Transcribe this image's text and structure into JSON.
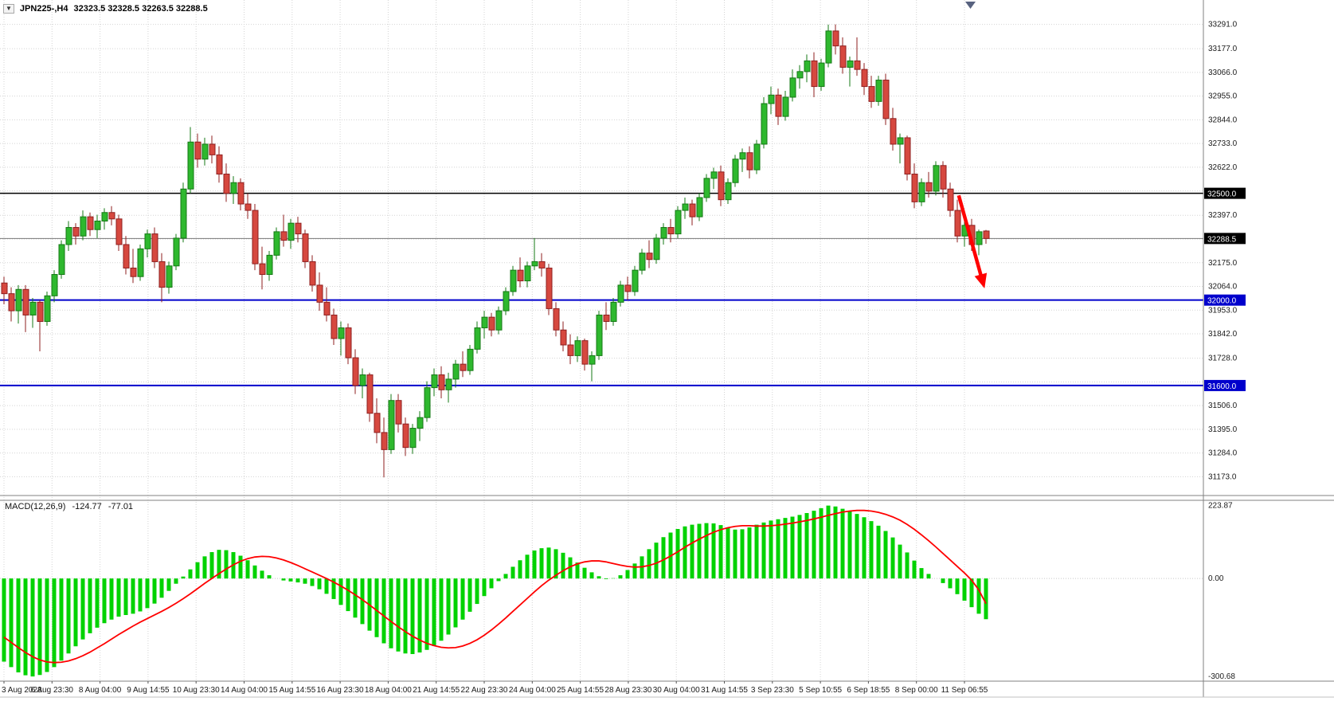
{
  "window": {
    "dropdown_icon": "▼",
    "symbol": "JPN225-,H4",
    "ohlc": "32323.5 32328.5 32263.5 32288.5"
  },
  "macd_panel": {
    "name_label": "MACD(12,26,9)",
    "main_value": "-124.77",
    "signal_value": "-77.01"
  },
  "colors": {
    "bull_fill": "#2eb82e",
    "bull_border": "#157815",
    "bear_fill": "#d6483f",
    "bear_border": "#8f1f1f",
    "grid": "#d4d4d4",
    "level_blue": "#0000cc",
    "level_black": "#000000",
    "current_price_line": "#777777",
    "macd_bar": "#00d200",
    "macd_signal": "#ff0000",
    "arrow": "#ff0000",
    "axis_text": "#1a1a1a",
    "box_text": "#ffffff",
    "pane_border": "#808080",
    "shift_marker": "#58627f"
  },
  "chart_data": {
    "type": "candlestick",
    "title": "JPN225-,H4",
    "symbol": "JPN225-",
    "timeframe": "H4",
    "ohlc_current": {
      "open": 32323.5,
      "high": 32328.5,
      "low": 32263.5,
      "close": 32288.5
    },
    "price_range": [
      31085,
      33405
    ],
    "price_ticks": [
      {
        "text": "33291.0",
        "value": 33291
      },
      {
        "text": "33177.0",
        "value": 33177
      },
      {
        "text": "33066.0",
        "value": 33066
      },
      {
        "text": "32955.0",
        "value": 32955
      },
      {
        "text": "32844.0",
        "value": 32844
      },
      {
        "text": "32733.0",
        "value": 32733
      },
      {
        "text": "32622.0",
        "value": 32622
      },
      {
        "text": "32397.0",
        "value": 32397
      },
      {
        "text": "32175.0",
        "value": 32175
      },
      {
        "text": "32064.0",
        "value": 32064
      },
      {
        "text": "31953.0",
        "value": 31953
      },
      {
        "text": "31842.0",
        "value": 31842
      },
      {
        "text": "31728.0",
        "value": 31728
      },
      {
        "text": "31506.0",
        "value": 31506
      },
      {
        "text": "31395.0",
        "value": 31395
      },
      {
        "text": "31284.0",
        "value": 31284
      },
      {
        "text": "31173.0",
        "value": 31173
      }
    ],
    "hidden_grid": [
      32511,
      32286,
      31617
    ],
    "levels": [
      {
        "label": "32500.0",
        "price": 32500,
        "style": "black"
      },
      {
        "label": "32288.5",
        "price": 32288.5,
        "style": "current"
      },
      {
        "label": "32000.0",
        "price": 32000,
        "style": "blue"
      },
      {
        "label": "31600.0",
        "price": 31600,
        "style": "blue"
      }
    ],
    "x_labels": [
      "3 Aug 2023",
      "6 Aug 23:30",
      "8 Aug 04:00",
      "9 Aug 14:55",
      "10 Aug 23:30",
      "14 Aug 04:00",
      "15 Aug 14:55",
      "16 Aug 23:30",
      "18 Aug 04:00",
      "21 Aug 14:55",
      "22 Aug 23:30",
      "24 Aug 04:00",
      "25 Aug 14:55",
      "28 Aug 23:30",
      "30 Aug 04:00",
      "31 Aug 14:55",
      "3 Sep 23:30",
      "5 Sep 10:55",
      "6 Sep 18:55",
      "8 Sep 00:00",
      "11 Sep 06:55"
    ],
    "x_label_span": [
      0,
      134
    ],
    "candles": [
      [
        32080,
        32110,
        31980,
        32030
      ],
      [
        32030,
        32060,
        31900,
        31950
      ],
      [
        31950,
        32070,
        31890,
        32050
      ],
      [
        32050,
        32070,
        31850,
        31930
      ],
      [
        31930,
        32010,
        31870,
        31990
      ],
      [
        31990,
        32000,
        31760,
        31900
      ],
      [
        31900,
        32040,
        31880,
        32020
      ],
      [
        32020,
        32140,
        31990,
        32120
      ],
      [
        32120,
        32280,
        32100,
        32260
      ],
      [
        32260,
        32370,
        32230,
        32340
      ],
      [
        32340,
        32360,
        32260,
        32300
      ],
      [
        32300,
        32420,
        32280,
        32390
      ],
      [
        32390,
        32410,
        32300,
        32330
      ],
      [
        32330,
        32400,
        32290,
        32370
      ],
      [
        32370,
        32430,
        32330,
        32410
      ],
      [
        32410,
        32440,
        32350,
        32380
      ],
      [
        32380,
        32400,
        32230,
        32260
      ],
      [
        32260,
        32300,
        32120,
        32150
      ],
      [
        32150,
        32240,
        32080,
        32110
      ],
      [
        32110,
        32260,
        32090,
        32240
      ],
      [
        32240,
        32330,
        32200,
        32310
      ],
      [
        32310,
        32340,
        32150,
        32180
      ],
      [
        32180,
        32220,
        31990,
        32060
      ],
      [
        32060,
        32180,
        32030,
        32160
      ],
      [
        32160,
        32310,
        32140,
        32290
      ],
      [
        32290,
        32550,
        32270,
        32520
      ],
      [
        32520,
        32810,
        32500,
        32740
      ],
      [
        32740,
        32780,
        32620,
        32660
      ],
      [
        32660,
        32760,
        32630,
        32730
      ],
      [
        32730,
        32770,
        32640,
        32680
      ],
      [
        32680,
        32720,
        32550,
        32590
      ],
      [
        32590,
        32640,
        32460,
        32500
      ],
      [
        32500,
        32580,
        32450,
        32550
      ],
      [
        32550,
        32570,
        32420,
        32450
      ],
      [
        32450,
        32500,
        32380,
        32420
      ],
      [
        32420,
        32450,
        32140,
        32170
      ],
      [
        32170,
        32250,
        32050,
        32120
      ],
      [
        32120,
        32230,
        32090,
        32210
      ],
      [
        32210,
        32340,
        32190,
        32320
      ],
      [
        32320,
        32400,
        32250,
        32280
      ],
      [
        32280,
        32380,
        32240,
        32360
      ],
      [
        32360,
        32390,
        32270,
        32310
      ],
      [
        32310,
        32330,
        32150,
        32180
      ],
      [
        32180,
        32210,
        32040,
        32070
      ],
      [
        32070,
        32130,
        31950,
        31990
      ],
      [
        31990,
        32060,
        31900,
        31930
      ],
      [
        31930,
        31960,
        31790,
        31820
      ],
      [
        31820,
        31900,
        31740,
        31870
      ],
      [
        31870,
        31890,
        31700,
        31730
      ],
      [
        31730,
        31770,
        31560,
        31600
      ],
      [
        31600,
        31680,
        31540,
        31650
      ],
      [
        31650,
        31660,
        31430,
        31470
      ],
      [
        31470,
        31540,
        31330,
        31380
      ],
      [
        31380,
        31450,
        31170,
        31300
      ],
      [
        31300,
        31560,
        31280,
        31530
      ],
      [
        31530,
        31560,
        31380,
        31420
      ],
      [
        31420,
        31450,
        31270,
        31310
      ],
      [
        31310,
        31420,
        31280,
        31400
      ],
      [
        31400,
        31480,
        31340,
        31450
      ],
      [
        31450,
        31620,
        31430,
        31590
      ],
      [
        31590,
        31680,
        31550,
        31650
      ],
      [
        31650,
        31690,
        31540,
        31580
      ],
      [
        31580,
        31660,
        31520,
        31630
      ],
      [
        31630,
        31720,
        31590,
        31700
      ],
      [
        31700,
        31760,
        31640,
        31670
      ],
      [
        31670,
        31790,
        31650,
        31770
      ],
      [
        31770,
        31900,
        31750,
        31870
      ],
      [
        31870,
        31950,
        31820,
        31920
      ],
      [
        31920,
        31940,
        31830,
        31860
      ],
      [
        31860,
        31970,
        31840,
        31950
      ],
      [
        31950,
        32060,
        31930,
        32040
      ],
      [
        32040,
        32160,
        32020,
        32140
      ],
      [
        32140,
        32200,
        32060,
        32090
      ],
      [
        32090,
        32180,
        32060,
        32160
      ],
      [
        32160,
        32290,
        32140,
        32180
      ],
      [
        32180,
        32220,
        32110,
        32150
      ],
      [
        32150,
        32170,
        31930,
        31960
      ],
      [
        31960,
        31990,
        31830,
        31860
      ],
      [
        31860,
        31900,
        31760,
        31790
      ],
      [
        31790,
        31840,
        31700,
        31740
      ],
      [
        31740,
        31830,
        31710,
        31810
      ],
      [
        31810,
        31820,
        31670,
        31700
      ],
      [
        31700,
        31760,
        31620,
        31740
      ],
      [
        31740,
        31950,
        31720,
        31930
      ],
      [
        31930,
        31990,
        31860,
        31900
      ],
      [
        31900,
        32010,
        31880,
        31990
      ],
      [
        31990,
        32090,
        31970,
        32070
      ],
      [
        32070,
        32110,
        32000,
        32040
      ],
      [
        32040,
        32160,
        32020,
        32140
      ],
      [
        32140,
        32240,
        32120,
        32220
      ],
      [
        32220,
        32280,
        32150,
        32190
      ],
      [
        32190,
        32310,
        32170,
        32290
      ],
      [
        32290,
        32360,
        32260,
        32340
      ],
      [
        32340,
        32380,
        32270,
        32310
      ],
      [
        32310,
        32440,
        32290,
        32420
      ],
      [
        32420,
        32480,
        32380,
        32450
      ],
      [
        32450,
        32470,
        32350,
        32390
      ],
      [
        32390,
        32500,
        32370,
        32480
      ],
      [
        32480,
        32590,
        32460,
        32570
      ],
      [
        32570,
        32620,
        32520,
        32600
      ],
      [
        32600,
        32630,
        32440,
        32470
      ],
      [
        32470,
        32570,
        32450,
        32550
      ],
      [
        32550,
        32680,
        32530,
        32660
      ],
      [
        32660,
        32710,
        32600,
        32690
      ],
      [
        32690,
        32720,
        32570,
        32610
      ],
      [
        32610,
        32750,
        32590,
        32730
      ],
      [
        32730,
        32950,
        32710,
        32920
      ],
      [
        32920,
        33000,
        32870,
        32960
      ],
      [
        32960,
        32990,
        32820,
        32860
      ],
      [
        32860,
        32980,
        32840,
        32950
      ],
      [
        32950,
        33080,
        32930,
        33040
      ],
      [
        33040,
        33100,
        32990,
        33070
      ],
      [
        33070,
        33150,
        33020,
        33120
      ],
      [
        33120,
        33160,
        32950,
        33000
      ],
      [
        33000,
        33130,
        32980,
        33110
      ],
      [
        33110,
        33290,
        33090,
        33260
      ],
      [
        33260,
        33291,
        33150,
        33190
      ],
      [
        33190,
        33230,
        33060,
        33090
      ],
      [
        33090,
        33140,
        33000,
        33120
      ],
      [
        33120,
        33230,
        33050,
        33080
      ],
      [
        33080,
        33110,
        32960,
        33000
      ],
      [
        33000,
        33050,
        32900,
        32930
      ],
      [
        32930,
        33050,
        32910,
        33030
      ],
      [
        33030,
        33060,
        32820,
        32850
      ],
      [
        32850,
        32900,
        32700,
        32730
      ],
      [
        32730,
        32780,
        32640,
        32760
      ],
      [
        32760,
        32770,
        32560,
        32590
      ],
      [
        32590,
        32640,
        32430,
        32460
      ],
      [
        32460,
        32570,
        32440,
        32550
      ],
      [
        32550,
        32600,
        32480,
        32510
      ],
      [
        32510,
        32650,
        32490,
        32630
      ],
      [
        32630,
        32650,
        32480,
        32520
      ],
      [
        32520,
        32550,
        32390,
        32420
      ],
      [
        32420,
        32470,
        32270,
        32300
      ],
      [
        32300,
        32380,
        32250,
        32350
      ],
      [
        32350,
        32380,
        32230,
        32260
      ],
      [
        32260,
        32330,
        32210,
        32320
      ],
      [
        32323.5,
        32328.5,
        32263.5,
        32288.5
      ]
    ],
    "macd": {
      "params": "12,26,9",
      "range": [
        240,
        -315
      ],
      "scale_ticks": [
        {
          "text": "223.87",
          "value": 223.87
        },
        {
          "text": "0.00",
          "value": 0
        },
        {
          "text": "-300.68",
          "value": -300.68
        }
      ],
      "current": {
        "main": -124.77,
        "signal": -77.01
      },
      "histogram": [
        -255,
        -272,
        -288,
        -297,
        -300.68,
        -296,
        -287,
        -272,
        -252,
        -230,
        -208,
        -187,
        -168,
        -151,
        -137,
        -126,
        -117,
        -112,
        -108,
        -101,
        -91,
        -77,
        -59,
        -38,
        -16,
        6,
        28,
        50,
        68,
        81,
        88,
        87,
        81,
        70,
        56,
        40,
        24,
        10,
        0,
        -6,
        -9,
        -12,
        -16,
        -23,
        -33,
        -47,
        -63,
        -81,
        -100,
        -120,
        -140,
        -160,
        -180,
        -199,
        -214,
        -224,
        -230,
        -232,
        -227,
        -219,
        -207,
        -191,
        -172,
        -150,
        -126,
        -102,
        -78,
        -54,
        -30,
        -8,
        14,
        36,
        56,
        73,
        86,
        93,
        95,
        90,
        79,
        65,
        49,
        33,
        19,
        7,
        -2,
        1,
        10,
        26,
        46,
        68,
        90,
        110,
        127,
        141,
        152,
        160,
        165,
        168,
        170,
        169,
        164,
        156,
        150,
        151,
        157,
        165,
        172,
        178,
        182,
        186,
        190,
        195,
        201,
        208,
        216,
        223.87,
        221,
        214,
        206,
        198,
        188,
        176,
        162,
        146,
        126,
        104,
        80,
        55,
        32,
        14,
        0,
        -14,
        -30,
        -48,
        -68,
        -88,
        -108,
        -124.77
      ],
      "signal": [
        -180,
        -196,
        -212,
        -227,
        -240,
        -250,
        -256,
        -258,
        -257,
        -253,
        -246,
        -237,
        -226,
        -213,
        -200,
        -186,
        -172,
        -159,
        -146,
        -134,
        -123,
        -112,
        -101,
        -89,
        -76,
        -62,
        -47,
        -31,
        -15,
        0,
        15,
        29,
        42,
        53,
        61,
        66,
        68,
        67,
        63,
        57,
        49,
        40,
        30,
        20,
        10,
        0,
        -11,
        -23,
        -36,
        -50,
        -65,
        -81,
        -98,
        -115,
        -132,
        -148,
        -163,
        -177,
        -189,
        -199,
        -206,
        -211,
        -213,
        -212,
        -207,
        -199,
        -188,
        -174,
        -158,
        -140,
        -121,
        -101,
        -81,
        -61,
        -41,
        -22,
        -5,
        10,
        24,
        36,
        45,
        51,
        54,
        54,
        51,
        46,
        41,
        37,
        35,
        36,
        40,
        47,
        57,
        69,
        82,
        96,
        109,
        121,
        132,
        142,
        150,
        156,
        160,
        162,
        162,
        161,
        161,
        162,
        164,
        167,
        170,
        174,
        178,
        183,
        188,
        194,
        199,
        204,
        207,
        209,
        209,
        207,
        203,
        197,
        189,
        179,
        166,
        151,
        134,
        116,
        97,
        77,
        57,
        37,
        17,
        -5,
        -35,
        -77.01
      ]
    },
    "arrow": {
      "from_index": 133.2,
      "from_price": 32490,
      "to_index": 136.8,
      "to_price": 32055
    }
  }
}
